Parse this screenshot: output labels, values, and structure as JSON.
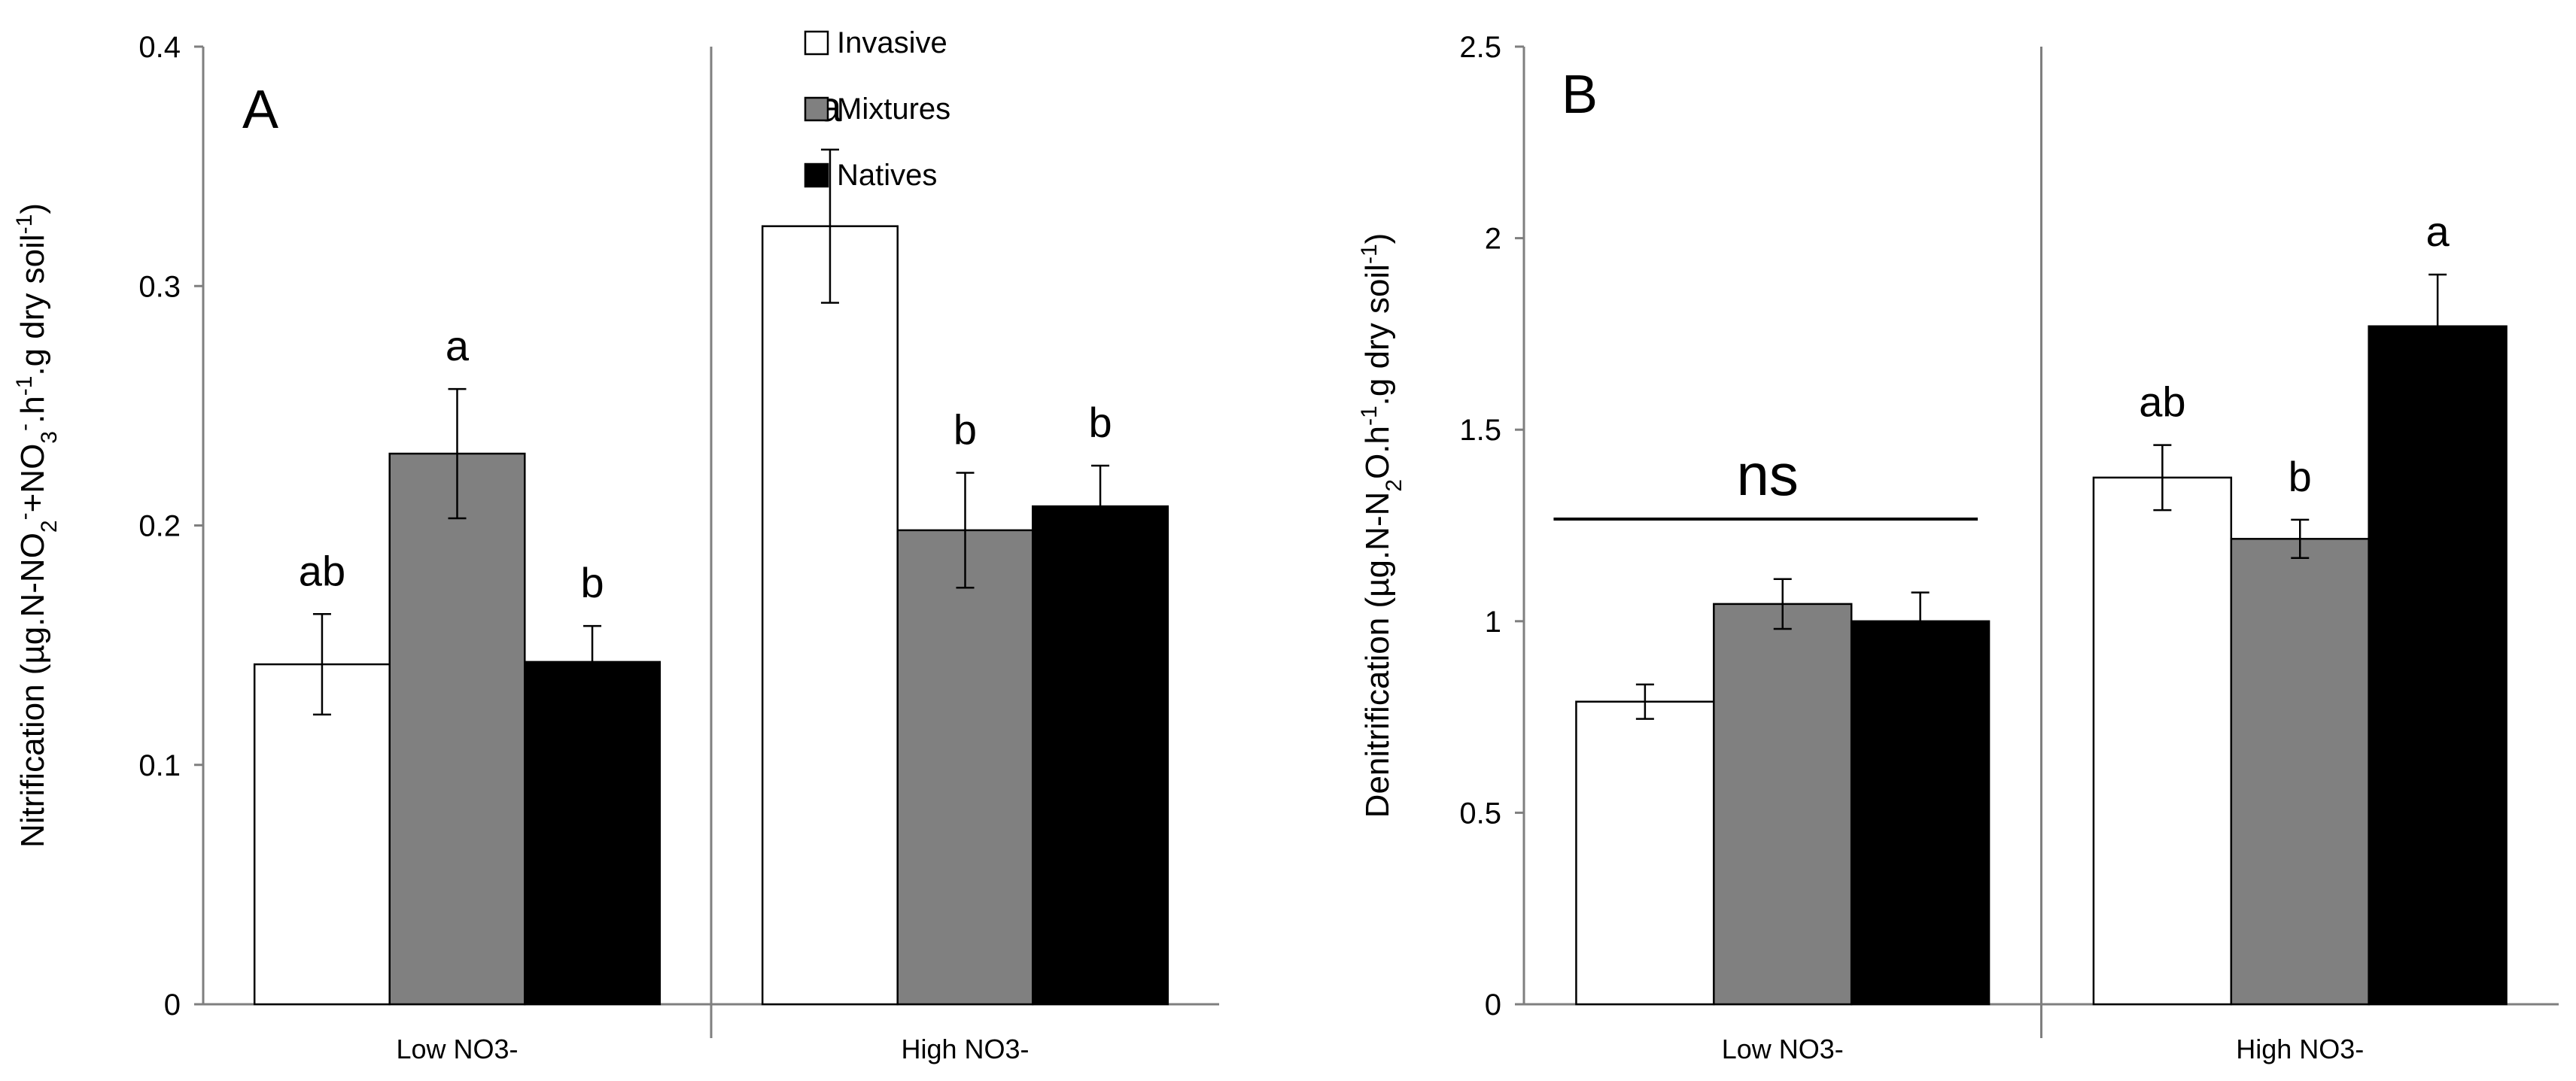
{
  "chart_data": [
    {
      "type": "bar",
      "panel_label": "A",
      "ylabel_parts": [
        "Nitrification (µg.N-NO",
        "2",
        "-",
        "+NO",
        "3",
        "-",
        ".h",
        "-1",
        ".g dry soil",
        "-1",
        ")"
      ],
      "ylim": [
        0,
        0.4
      ],
      "yticks": [
        "0",
        "0.1",
        "0.2",
        "0.3",
        "0.4"
      ],
      "categories": [
        "Low NO3-",
        "High NO3-"
      ],
      "series": [
        {
          "name": "Invasive",
          "values": [
            0.142,
            0.325
          ],
          "errors": [
            0.021,
            0.032
          ],
          "letters": [
            "ab",
            "a"
          ]
        },
        {
          "name": "Mixtures",
          "values": [
            0.23,
            0.198
          ],
          "errors": [
            0.027,
            0.024
          ],
          "letters": [
            "a",
            "b"
          ]
        },
        {
          "name": "Natives",
          "values": [
            0.143,
            0.208
          ],
          "errors": [
            0.015,
            0.017
          ],
          "letters": [
            "b",
            "b"
          ]
        }
      ],
      "legend": {
        "position": "top-center",
        "items": [
          "Invasive",
          "Mixtures",
          "Natives"
        ]
      },
      "grid": false
    },
    {
      "type": "bar",
      "panel_label": "B",
      "ylabel_parts": [
        "Denitrification (µg.N-N",
        "2",
        "",
        "O.h",
        "",
        "-1",
        ".g dry soil",
        "-1",
        ")"
      ],
      "ylim": [
        0,
        2.5
      ],
      "yticks": [
        "0",
        "0.5",
        "1",
        "1.5",
        "2",
        "2.5"
      ],
      "categories": [
        "Low NO3-",
        "High NO3-"
      ],
      "series": [
        {
          "name": "Invasive",
          "values": [
            0.79,
            1.375
          ],
          "errors": [
            0.045,
            0.085
          ],
          "letters": [
            "",
            "ab"
          ]
        },
        {
          "name": "Mixtures",
          "values": [
            1.045,
            1.215
          ],
          "errors": [
            0.065,
            0.05
          ],
          "letters": [
            "",
            "b"
          ]
        },
        {
          "name": "Natives",
          "values": [
            1.0,
            1.77
          ],
          "errors": [
            0.075,
            0.135
          ],
          "letters": [
            "",
            "a"
          ]
        }
      ],
      "group_annotation": {
        "group": 0,
        "text": "ns"
      },
      "grid": false
    }
  ],
  "colors": {
    "Invasive": "#ffffff",
    "Mixtures": "#808080",
    "Natives": "#000000",
    "axis": "#7f7f7f",
    "stroke": "#000000"
  }
}
